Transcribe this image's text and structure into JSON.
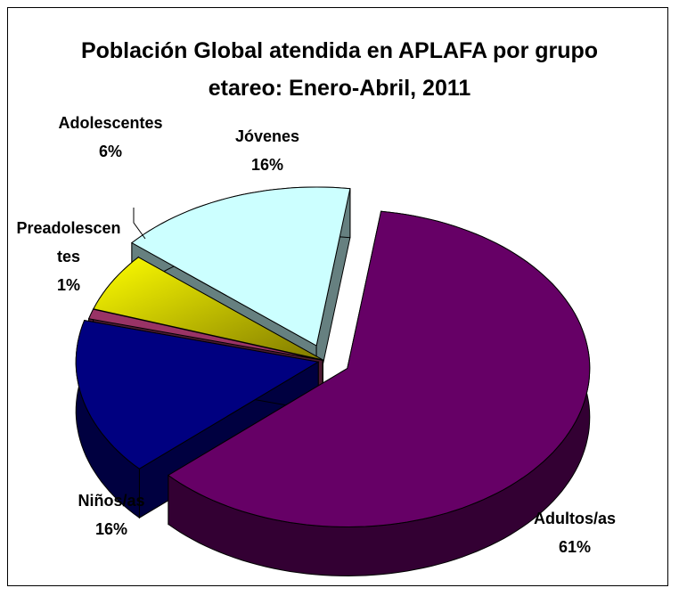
{
  "chart_data": {
    "type": "pie3d",
    "title": "Población Global atendida en APLAFA por grupo etareo: Enero-Abril, 2011",
    "categories": [
      "Adultos/as",
      "Niños/as",
      "Preadolescentes",
      "Adolescentes",
      "Jóvenes"
    ],
    "values": [
      61,
      16,
      1,
      6,
      16
    ],
    "value_labels": [
      "61%",
      "16%",
      "1%",
      "6%",
      "16%"
    ],
    "colors": [
      "#660066",
      "#000080",
      "#993366",
      "#ffff00",
      "#ccffff"
    ]
  }
}
